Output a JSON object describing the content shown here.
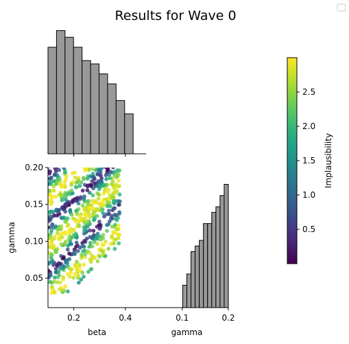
{
  "chart_data": {
    "title": "Results for Wave 0",
    "panels": [
      {
        "type": "bar",
        "name": "beta-histogram",
        "bin_edges": [
          0.1,
          0.133,
          0.166,
          0.199,
          0.232,
          0.265,
          0.298,
          0.331,
          0.364,
          0.397,
          0.43
        ],
        "values": [
          32,
          37,
          35,
          32,
          28,
          27,
          24,
          21,
          16,
          12
        ],
        "xlim": [
          0.1,
          0.48
        ],
        "ylim": [
          0,
          40
        ]
      },
      {
        "type": "scatter",
        "name": "beta-gamma-scatter",
        "xlabel": "beta",
        "ylabel": "gamma",
        "xlim": [
          0.1,
          0.48
        ],
        "ylim": [
          0.01,
          0.2
        ],
        "xticks": [
          {
            "v": 0.2,
            "label": "0.2"
          },
          {
            "v": 0.4,
            "label": "0.4"
          }
        ],
        "yticks": [
          {
            "v": 0.05,
            "label": "0.05"
          },
          {
            "v": 0.1,
            "label": "0.10"
          },
          {
            "v": 0.15,
            "label": "0.15"
          },
          {
            "v": 0.2,
            "label": "0.20"
          }
        ],
        "color_by": "Implausibility"
      },
      {
        "type": "bar",
        "name": "gamma-histogram",
        "xlabel": "gamma",
        "bin_edges": [
          0.02,
          0.029,
          0.038,
          0.047,
          0.056,
          0.065,
          0.074,
          0.083,
          0.092,
          0.101,
          0.11,
          0.119,
          0.128,
          0.137,
          0.146,
          0.155,
          0.164,
          0.173,
          0.182,
          0.191,
          0.2
        ],
        "values": [
          0,
          0,
          0,
          0,
          0,
          0,
          0,
          0,
          0,
          4,
          6,
          10,
          11,
          12,
          15,
          15,
          17,
          18,
          20,
          22
        ],
        "xlim": [
          0.02,
          0.2
        ],
        "xticks": [
          {
            "v": 0.1,
            "label": "0.1"
          },
          {
            "v": 0.2,
            "label": "0.2"
          }
        ],
        "ylim": [
          0,
          25
        ]
      }
    ],
    "colorbar": {
      "label": "Implausibility",
      "colormap": "viridis",
      "range": [
        0.0,
        3.0
      ],
      "ticks": [
        {
          "v": 0.5,
          "label": "0.5"
        },
        {
          "v": 1.0,
          "label": "1.0"
        },
        {
          "v": 1.5,
          "label": "1.5"
        },
        {
          "v": 2.0,
          "label": "2.0"
        },
        {
          "v": 2.5,
          "label": "2.5"
        }
      ]
    },
    "bar_color": "#999999",
    "legend": "top-right, empty"
  }
}
